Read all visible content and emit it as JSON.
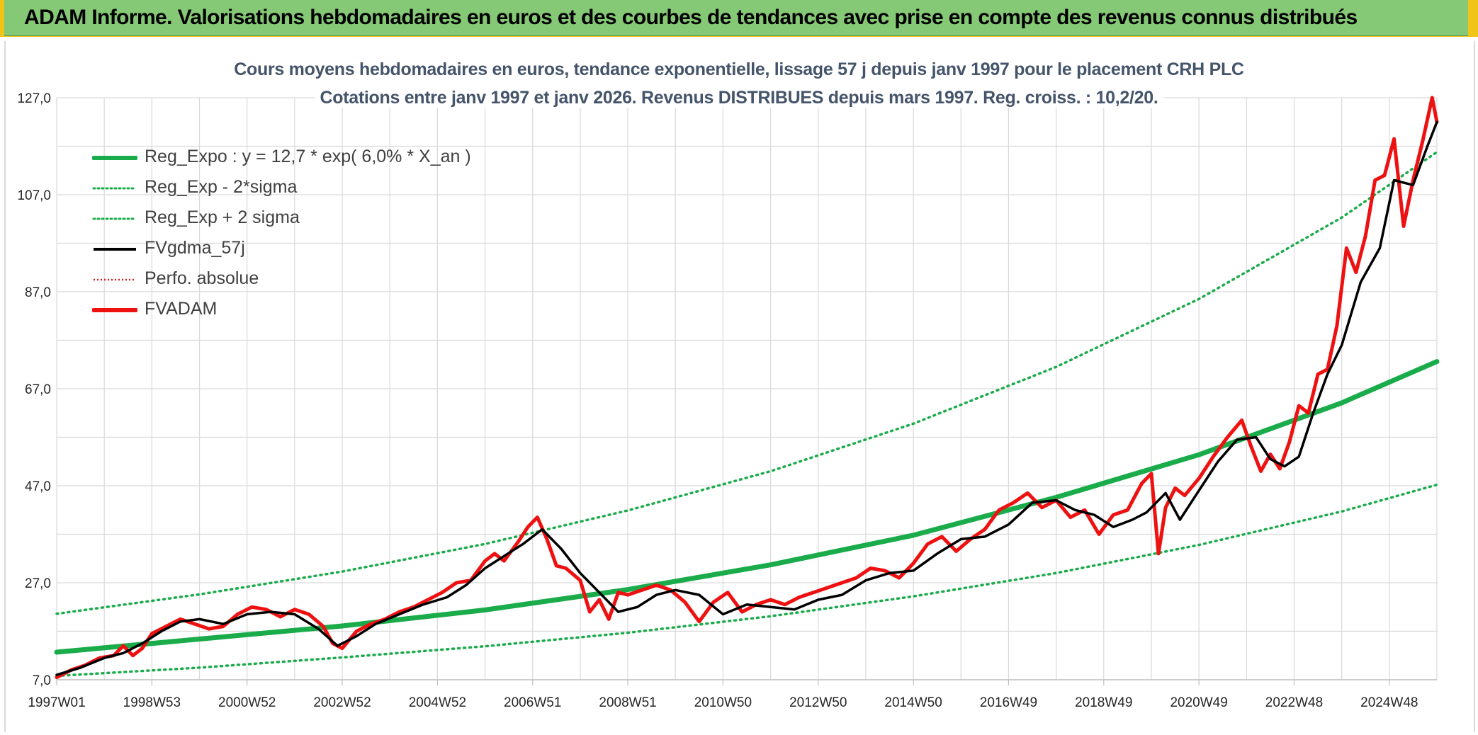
{
  "header": {
    "title": "ADAM Informe. Valorisations hebdomadaires en euros et des courbes de tendances avec prise en compte des revenus connus distribués"
  },
  "colors": {
    "header_bg": "#85c875",
    "frame": "#f0c419",
    "reg_expo": "#1aac4a",
    "sigma_lines": "#1aac4a",
    "fvgdma": "#000000",
    "perfo": "#e31a1c",
    "fvadam": "#ee1111",
    "title_text": "#44546a"
  },
  "chart_data": {
    "type": "line",
    "title": "Cours moyens hebdomadaires en euros, tendance exponentielle, lissage 57 j depuis janv 1997 pour le placement CRH PLC",
    "subtitle": "Cotations entre janv 1997 et janv 2026. Revenus DISTRIBUES depuis mars 1997. Reg. croiss. : 10,2/20.",
    "xlabel": "",
    "ylabel": "",
    "x_ticks": [
      "1997W01",
      "1998W53",
      "2000W52",
      "2002W52",
      "2004W52",
      "2006W51",
      "2008W51",
      "2010W50",
      "2012W50",
      "2014W50",
      "2016W49",
      "2018W49",
      "2020W49",
      "2022W48",
      "2024W48"
    ],
    "x_tick_years": [
      1997.0,
      1999.0,
      2001.0,
      2003.0,
      2005.0,
      2007.0,
      2009.0,
      2011.0,
      2013.0,
      2015.0,
      2017.0,
      2019.0,
      2021.0,
      2023.0,
      2025.0
    ],
    "xlim": [
      1997.0,
      2026.0
    ],
    "y_ticks": [
      "7,0",
      "27,0",
      "47,0",
      "67,0",
      "87,0",
      "107,0",
      "127,0"
    ],
    "ylim": [
      7.0,
      127.0
    ],
    "grid": true,
    "legend_position": "top-left",
    "legend": [
      {
        "label": "Reg_Expo : y = 12,7 * exp( 6,0% *  X_an )",
        "style": "solid-thick",
        "color": "#1aac4a"
      },
      {
        "label": "Reg_Exp - 2*sigma",
        "style": "dotted",
        "color": "#1aac4a"
      },
      {
        "label": "Reg_Exp + 2 sigma",
        "style": "dotted",
        "color": "#1aac4a"
      },
      {
        "label": "FVgdma_57j",
        "style": "solid",
        "color": "#000000"
      },
      {
        "label": "Perfo. absolue",
        "style": "dotted",
        "color": "#e31a1c"
      },
      {
        "label": "FVADAM",
        "style": "solid-thick",
        "color": "#ee1111"
      }
    ],
    "series": [
      {
        "name": "Reg_Expo : y = 12,7 * exp( 6,0% *  X_an )",
        "x": [
          1997.0,
          2000.0,
          2003.0,
          2006.0,
          2009.0,
          2012.0,
          2015.0,
          2018.0,
          2021.0,
          2024.0,
          2026.0
        ],
        "values": [
          12.7,
          15.4,
          18.1,
          21.4,
          25.6,
          30.7,
          36.8,
          44.6,
          53.4,
          64.1,
          72.6
        ]
      },
      {
        "name": "Reg_Exp - 2*sigma",
        "x": [
          1997.0,
          2000.0,
          2003.0,
          2006.0,
          2009.0,
          2012.0,
          2015.0,
          2018.0,
          2021.0,
          2024.0,
          2026.0
        ],
        "values": [
          7.8,
          9.5,
          11.6,
          13.9,
          16.7,
          20.1,
          24.2,
          29.0,
          34.8,
          41.7,
          47.2
        ]
      },
      {
        "name": "Reg_Exp + 2 sigma",
        "x": [
          1997.0,
          2000.0,
          2003.0,
          2006.0,
          2009.0,
          2012.0,
          2015.0,
          2018.0,
          2021.0,
          2024.0,
          2026.0
        ],
        "values": [
          20.6,
          24.6,
          29.3,
          35.0,
          41.9,
          50.0,
          59.8,
          71.5,
          85.5,
          102.3,
          115.8
        ]
      },
      {
        "name": "FVgdma_57j",
        "x": [
          1997.0,
          1997.5,
          1998.0,
          1998.4,
          1998.8,
          1999.2,
          1999.6,
          2000.0,
          2000.5,
          2001.0,
          2001.5,
          2002.0,
          2002.5,
          2002.9,
          2003.3,
          2003.7,
          2004.2,
          2004.7,
          2005.2,
          2005.6,
          2006.0,
          2006.4,
          2006.8,
          2007.2,
          2007.6,
          2008.0,
          2008.4,
          2008.8,
          2009.2,
          2009.6,
          2010.0,
          2010.5,
          2011.0,
          2011.5,
          2012.0,
          2012.5,
          2013.0,
          2013.5,
          2014.0,
          2014.5,
          2015.0,
          2015.5,
          2016.0,
          2016.5,
          2017.0,
          2017.5,
          2018.0,
          2018.4,
          2018.8,
          2019.2,
          2019.6,
          2019.9,
          2020.3,
          2020.6,
          2021.0,
          2021.4,
          2021.8,
          2022.2,
          2022.5,
          2022.8,
          2023.1,
          2023.4,
          2023.7,
          2024.0,
          2024.4,
          2024.8,
          2025.1,
          2025.5,
          2025.8,
          2026.0
        ],
        "values": [
          8.0,
          9.5,
          11.5,
          12.5,
          14.5,
          17.0,
          19.0,
          19.5,
          18.5,
          20.5,
          21.0,
          20.5,
          17.5,
          14.0,
          16.0,
          18.5,
          20.5,
          22.5,
          24.0,
          26.5,
          30.0,
          32.5,
          35.0,
          38.0,
          34.0,
          29.0,
          25.0,
          21.0,
          22.0,
          24.5,
          25.5,
          24.5,
          20.5,
          22.5,
          22.0,
          21.5,
          23.5,
          24.5,
          27.5,
          29.0,
          29.5,
          33.0,
          36.0,
          36.5,
          39.0,
          43.5,
          44.0,
          42.0,
          41.0,
          38.5,
          40.0,
          41.5,
          45.5,
          40.0,
          46.0,
          52.0,
          56.5,
          57.0,
          52.5,
          51.0,
          53.0,
          62.0,
          70.0,
          76.0,
          89.0,
          96.0,
          110.0,
          109.0,
          117.0,
          122.0
        ]
      },
      {
        "name": "FVADAM",
        "x": [
          1997.0,
          1997.3,
          1997.6,
          1997.9,
          1998.2,
          1998.4,
          1998.6,
          1998.8,
          1999.0,
          1999.3,
          1999.6,
          1999.9,
          2000.2,
          2000.5,
          2000.8,
          2001.1,
          2001.4,
          2001.7,
          2002.0,
          2002.3,
          2002.6,
          2002.8,
          2003.0,
          2003.3,
          2003.6,
          2003.9,
          2004.2,
          2004.5,
          2004.8,
          2005.1,
          2005.4,
          2005.7,
          2006.0,
          2006.2,
          2006.4,
          2006.7,
          2006.9,
          2007.1,
          2007.3,
          2007.5,
          2007.7,
          2008.0,
          2008.2,
          2008.4,
          2008.6,
          2008.8,
          2009.0,
          2009.3,
          2009.6,
          2009.9,
          2010.2,
          2010.5,
          2010.8,
          2011.1,
          2011.4,
          2011.7,
          2012.0,
          2012.3,
          2012.6,
          2012.9,
          2013.2,
          2013.5,
          2013.8,
          2014.1,
          2014.4,
          2014.7,
          2015.0,
          2015.3,
          2015.6,
          2015.9,
          2016.2,
          2016.5,
          2016.8,
          2017.1,
          2017.4,
          2017.7,
          2018.0,
          2018.3,
          2018.6,
          2018.9,
          2019.2,
          2019.5,
          2019.8,
          2020.0,
          2020.15,
          2020.3,
          2020.5,
          2020.7,
          2021.0,
          2021.3,
          2021.6,
          2021.9,
          2022.1,
          2022.3,
          2022.5,
          2022.7,
          2022.9,
          2023.1,
          2023.3,
          2023.5,
          2023.7,
          2023.9,
          2024.1,
          2024.3,
          2024.5,
          2024.7,
          2024.9,
          2025.1,
          2025.3,
          2025.5,
          2025.7,
          2025.9,
          2026.0
        ],
        "values": [
          7.5,
          9.0,
          10.0,
          11.5,
          12.0,
          14.0,
          12.0,
          13.5,
          16.5,
          18.0,
          19.5,
          18.5,
          17.5,
          18.0,
          20.5,
          22.0,
          21.5,
          20.0,
          21.5,
          20.5,
          18.0,
          14.5,
          13.5,
          17.0,
          18.5,
          19.5,
          21.0,
          22.0,
          23.5,
          25.0,
          27.0,
          27.5,
          31.5,
          33.0,
          31.5,
          35.5,
          38.5,
          40.5,
          36.0,
          30.5,
          30.0,
          27.5,
          21.0,
          23.5,
          19.5,
          25.0,
          24.5,
          25.5,
          26.5,
          25.5,
          23.0,
          19.0,
          23.0,
          25.0,
          21.0,
          22.5,
          23.5,
          22.5,
          24.0,
          25.0,
          26.0,
          27.0,
          28.0,
          30.0,
          29.5,
          28.0,
          31.0,
          35.0,
          36.5,
          33.5,
          36.0,
          38.0,
          42.0,
          43.5,
          45.5,
          42.5,
          44.0,
          40.5,
          42.0,
          37.0,
          41.0,
          42.0,
          47.5,
          49.5,
          33.0,
          42.5,
          46.5,
          45.0,
          48.5,
          53.0,
          57.0,
          60.5,
          55.0,
          50.0,
          53.5,
          50.5,
          56.0,
          63.5,
          62.0,
          70.0,
          71.0,
          80.0,
          96.0,
          91.0,
          98.5,
          110.0,
          111.0,
          118.5,
          100.5,
          110.0,
          118.0,
          127.0,
          122.0
        ]
      }
    ]
  }
}
